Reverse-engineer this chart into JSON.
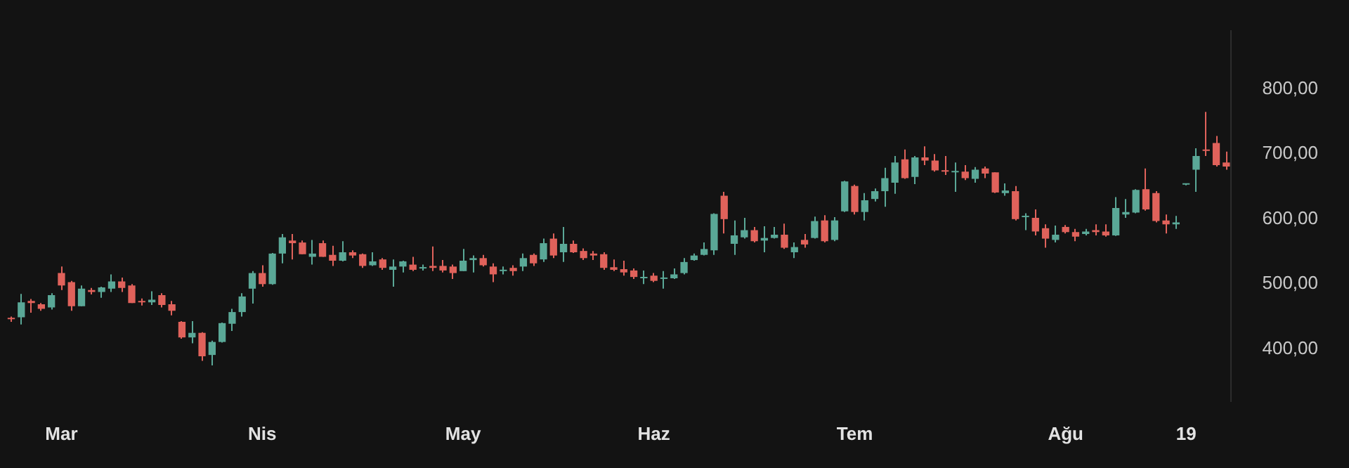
{
  "chart_data": {
    "type": "candlestick",
    "categories": [
      null,
      null,
      null,
      null,
      null,
      "Mar",
      null,
      null,
      null,
      null,
      null,
      null,
      null,
      null,
      null,
      null,
      null,
      null,
      null,
      null,
      null,
      null,
      null,
      null,
      null,
      "Nis",
      null,
      null,
      null,
      null,
      null,
      null,
      null,
      null,
      null,
      null,
      null,
      null,
      null,
      null,
      null,
      null,
      null,
      null,
      null,
      "May",
      null,
      null,
      null,
      null,
      null,
      null,
      null,
      null,
      null,
      null,
      null,
      null,
      null,
      null,
      null,
      null,
      null,
      null,
      "Haz",
      null,
      null,
      null,
      null,
      null,
      null,
      null,
      null,
      null,
      null,
      null,
      null,
      null,
      null,
      null,
      null,
      null,
      null,
      null,
      "Tem",
      null,
      null,
      null,
      null,
      null,
      null,
      null,
      null,
      null,
      null,
      null,
      null,
      null,
      null,
      null,
      null,
      null,
      null,
      null,
      null,
      "Ağu",
      null,
      null,
      null,
      null,
      null,
      null,
      null,
      null,
      null,
      null,
      null,
      "19",
      null,
      null,
      null,
      null
    ],
    "ohlc": [
      [
        448,
        450,
        442,
        446
      ],
      [
        449,
        485,
        438,
        472
      ],
      [
        474,
        477,
        456,
        471
      ],
      [
        469,
        471,
        459,
        462
      ],
      [
        464,
        486,
        461,
        483
      ],
      [
        517,
        527,
        491,
        498
      ],
      [
        503,
        505,
        459,
        466
      ],
      [
        466,
        498,
        466,
        493
      ],
      [
        491,
        494,
        484,
        488
      ],
      [
        488,
        496,
        479,
        495
      ],
      [
        493,
        515,
        488,
        504
      ],
      [
        504,
        510,
        488,
        494
      ],
      [
        498,
        500,
        471,
        471
      ],
      [
        474,
        478,
        467,
        472
      ],
      [
        472,
        489,
        468,
        476
      ],
      [
        483,
        486,
        464,
        468
      ],
      [
        469,
        474,
        452,
        459
      ],
      [
        442,
        443,
        416,
        418
      ],
      [
        418,
        443,
        409,
        425
      ],
      [
        425,
        426,
        382,
        389
      ],
      [
        391,
        413,
        375,
        411
      ],
      [
        411,
        441,
        410,
        440
      ],
      [
        439,
        462,
        428,
        457
      ],
      [
        457,
        486,
        450,
        481
      ],
      [
        493,
        520,
        470,
        517
      ],
      [
        517,
        529,
        496,
        500
      ],
      [
        500,
        548,
        499,
        547
      ],
      [
        547,
        577,
        532,
        572
      ],
      [
        567,
        577,
        538,
        563
      ],
      [
        564,
        567,
        546,
        546
      ],
      [
        542,
        568,
        530,
        547
      ],
      [
        563,
        567,
        542,
        542
      ],
      [
        545,
        559,
        528,
        536
      ],
      [
        536,
        566,
        535,
        549
      ],
      [
        549,
        552,
        540,
        544
      ],
      [
        546,
        547,
        525,
        528
      ],
      [
        529,
        549,
        528,
        535
      ],
      [
        538,
        540,
        522,
        525
      ],
      [
        522,
        538,
        496,
        527
      ],
      [
        527,
        536,
        518,
        535
      ],
      [
        530,
        542,
        520,
        522
      ],
      [
        524,
        530,
        521,
        526
      ],
      [
        528,
        558,
        520,
        525
      ],
      [
        528,
        537,
        518,
        521
      ],
      [
        527,
        530,
        508,
        517
      ],
      [
        520,
        554,
        520,
        536
      ],
      [
        537,
        544,
        518,
        540
      ],
      [
        540,
        545,
        527,
        529
      ],
      [
        527,
        532,
        503,
        515
      ],
      [
        520,
        527,
        515,
        522
      ],
      [
        525,
        529,
        513,
        520
      ],
      [
        527,
        547,
        520,
        540
      ],
      [
        545,
        547,
        528,
        532
      ],
      [
        538,
        570,
        534,
        563
      ],
      [
        570,
        578,
        540,
        544
      ],
      [
        549,
        588,
        534,
        562
      ],
      [
        562,
        567,
        548,
        549
      ],
      [
        551,
        555,
        537,
        540
      ],
      [
        547,
        551,
        537,
        544
      ],
      [
        546,
        549,
        522,
        525
      ],
      [
        526,
        538,
        520,
        522
      ],
      [
        523,
        536,
        513,
        518
      ],
      [
        521,
        524,
        508,
        511
      ],
      [
        509,
        521,
        500,
        511
      ],
      [
        513,
        517,
        503,
        505
      ],
      [
        508,
        520,
        493,
        510
      ],
      [
        509,
        524,
        508,
        515
      ],
      [
        517,
        540,
        515,
        534
      ],
      [
        537,
        547,
        536,
        544
      ],
      [
        545,
        564,
        544,
        554
      ],
      [
        552,
        609,
        545,
        608
      ],
      [
        636,
        642,
        578,
        600
      ],
      [
        562,
        598,
        545,
        575
      ],
      [
        572,
        602,
        570,
        583
      ],
      [
        583,
        588,
        564,
        566
      ],
      [
        567,
        589,
        549,
        571
      ],
      [
        571,
        588,
        570,
        576
      ],
      [
        576,
        593,
        554,
        556
      ],
      [
        549,
        564,
        540,
        557
      ],
      [
        568,
        577,
        556,
        561
      ],
      [
        571,
        604,
        570,
        597
      ],
      [
        598,
        606,
        564,
        566
      ],
      [
        568,
        603,
        566,
        598
      ],
      [
        612,
        659,
        611,
        658
      ],
      [
        651,
        653,
        607,
        611
      ],
      [
        611,
        640,
        598,
        629
      ],
      [
        631,
        647,
        627,
        643
      ],
      [
        643,
        679,
        619,
        663
      ],
      [
        656,
        697,
        639,
        687
      ],
      [
        692,
        707,
        662,
        663
      ],
      [
        665,
        697,
        654,
        695
      ],
      [
        695,
        712,
        683,
        690
      ],
      [
        690,
        700,
        673,
        675
      ],
      [
        675,
        697,
        668,
        673
      ],
      [
        672,
        687,
        642,
        674
      ],
      [
        673,
        683,
        660,
        663
      ],
      [
        662,
        680,
        656,
        676
      ],
      [
        678,
        681,
        663,
        670
      ],
      [
        672,
        672,
        640,
        641
      ],
      [
        640,
        655,
        636,
        644
      ],
      [
        643,
        651,
        598,
        600
      ],
      [
        603,
        609,
        583,
        605
      ],
      [
        602,
        615,
        575,
        581
      ],
      [
        586,
        592,
        556,
        570
      ],
      [
        568,
        590,
        564,
        576
      ],
      [
        588,
        591,
        578,
        580
      ],
      [
        580,
        585,
        566,
        573
      ],
      [
        577,
        585,
        575,
        581
      ],
      [
        583,
        592,
        575,
        580
      ],
      [
        581,
        592,
        573,
        575
      ],
      [
        575,
        634,
        574,
        617
      ],
      [
        607,
        631,
        602,
        611
      ],
      [
        610,
        646,
        609,
        645
      ],
      [
        646,
        678,
        613,
        615
      ],
      [
        640,
        643,
        595,
        597
      ],
      [
        598,
        607,
        578,
        592
      ],
      [
        592,
        605,
        585,
        595
      ],
      [
        653,
        655,
        652,
        654
      ],
      [
        676,
        709,
        642,
        697
      ],
      [
        707,
        765,
        697,
        705
      ],
      [
        717,
        728,
        681,
        683
      ],
      [
        687,
        704,
        676,
        681
      ]
    ],
    "colors": [
      "#e0625b",
      "#5aa897",
      "#e0625b",
      "#e0625b",
      "#5aa897",
      "#e0625b",
      "#e0625b",
      "#5aa897",
      "#e0625b",
      "#5aa897",
      "#5aa897",
      "#e0625b",
      "#e0625b",
      "#e0625b",
      "#5aa897",
      "#e0625b",
      "#e0625b",
      "#e0625b",
      "#5aa897",
      "#e0625b",
      "#5aa897",
      "#5aa897",
      "#5aa897",
      "#5aa897",
      "#5aa897",
      "#e0625b",
      "#5aa897",
      "#5aa897",
      "#e0625b",
      "#e0625b",
      "#5aa897",
      "#e0625b",
      "#e0625b",
      "#5aa897",
      "#e0625b",
      "#e0625b",
      "#5aa897",
      "#e0625b",
      "#5aa897",
      "#5aa897",
      "#e0625b",
      "#5aa897",
      "#e0625b",
      "#e0625b",
      "#e0625b",
      "#5aa897",
      "#5aa897",
      "#e0625b",
      "#e0625b",
      "#5aa897",
      "#e0625b",
      "#5aa897",
      "#e0625b",
      "#5aa897",
      "#e0625b",
      "#5aa897",
      "#e0625b",
      "#e0625b",
      "#e0625b",
      "#e0625b",
      "#e0625b",
      "#e0625b",
      "#e0625b",
      "#5aa897",
      "#e0625b",
      "#5aa897",
      "#5aa897",
      "#5aa897",
      "#5aa897",
      "#5aa897",
      "#5aa897",
      "#e0625b",
      "#5aa897",
      "#5aa897",
      "#e0625b",
      "#5aa897",
      "#5aa897",
      "#e0625b",
      "#5aa897",
      "#e0625b",
      "#5aa897",
      "#e0625b",
      "#5aa897",
      "#5aa897",
      "#e0625b",
      "#5aa897",
      "#5aa897",
      "#5aa897",
      "#5aa897",
      "#e0625b",
      "#5aa897",
      "#e0625b",
      "#e0625b",
      "#e0625b",
      "#5aa897",
      "#e0625b",
      "#5aa897",
      "#e0625b",
      "#e0625b",
      "#5aa897",
      "#e0625b",
      "#5aa897",
      "#e0625b",
      "#e0625b",
      "#5aa897",
      "#e0625b",
      "#e0625b",
      "#5aa897",
      "#e0625b",
      "#e0625b",
      "#5aa897",
      "#5aa897",
      "#5aa897",
      "#e0625b",
      "#e0625b",
      "#e0625b",
      "#5aa897",
      "#5aa897",
      "#5aa897",
      "#e0625b",
      "#e0625b",
      "#e0625b"
    ],
    "ylim": [
      320,
      890
    ],
    "yticks": [
      {
        "value": 400,
        "label": "400,00"
      },
      {
        "value": 500,
        "label": "500,00"
      },
      {
        "value": 600,
        "label": "600,00"
      },
      {
        "value": 700,
        "label": "700,00"
      },
      {
        "value": 800,
        "label": "800,00"
      }
    ]
  }
}
